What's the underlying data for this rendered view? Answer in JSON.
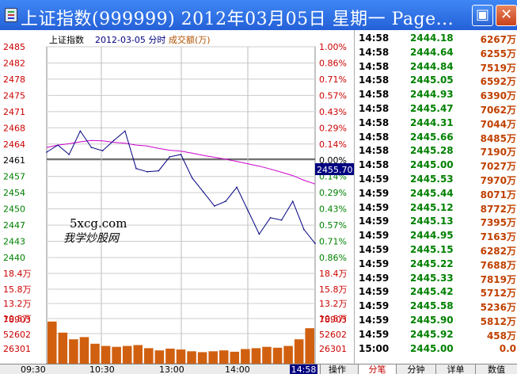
{
  "window": {
    "title": "上证指数(999999) 2012年03月05日 星期一 Page...",
    "maximize_glyph": "▣",
    "close_glyph": "✕"
  },
  "header": {
    "index_name": "上证指数",
    "date_label": "2012-03-05 分时",
    "volume_label": "成交额(万)"
  },
  "colors": {
    "up": "#cc0000",
    "down": "#008000",
    "price_line": "#000080",
    "avg_line": "#cc00cc",
    "volume_bar": "#d06010",
    "marker_bg": "#000080"
  },
  "price_axis": {
    "left": [
      "2485",
      "2482",
      "2478",
      "2475",
      "2471",
      "2468",
      "2464",
      "2461",
      "2457",
      "2454",
      "2450",
      "2447",
      "2443",
      "2440"
    ],
    "right": [
      "1.00%",
      "0.86%",
      "0.71%",
      "0.57%",
      "0.43%",
      "0.29%",
      "0.14%",
      "0.00%",
      "0.14%",
      "0.29%",
      "0.43%",
      "0.57%",
      "0.71%",
      "0.86%"
    ]
  },
  "current_price_marker": "2455.70",
  "turnover_axis": {
    "labels": [
      "18.4万",
      "15.8万",
      "13.2万",
      "10.5万"
    ]
  },
  "volume_axis": {
    "labels": [
      "78903",
      "52602",
      "26301"
    ]
  },
  "watermark": {
    "domain": "5xcg.com",
    "tagline": "我学炒股网"
  },
  "time_axis": {
    "labels": [
      "09:30",
      "10:30",
      "13:00",
      "14:00"
    ],
    "current": "14:58"
  },
  "chart_data": {
    "type": "line",
    "x": [
      "09:30",
      "09:40",
      "09:50",
      "10:00",
      "10:10",
      "10:20",
      "10:30",
      "10:40",
      "10:50",
      "11:00",
      "11:10",
      "11:20",
      "11:30",
      "13:10",
      "13:20",
      "13:30",
      "13:40",
      "13:50",
      "14:00",
      "14:10",
      "14:20",
      "14:30",
      "14:40",
      "14:50",
      "14:58"
    ],
    "series": [
      {
        "values": [
          2462.5,
          2464.0,
          2462.0,
          2467.0,
          2463.5,
          2462.8,
          2465.0,
          2467.0,
          2459.0,
          2458.3,
          2458.5,
          2461.5,
          2462.0,
          2457.0,
          2454.0,
          2451.0,
          2452.0,
          2455.0,
          2450.0,
          2445.0,
          2448.5,
          2448.0,
          2452.0,
          2446.0,
          2443.0
        ]
      },
      {
        "values": [
          2463.5,
          2464.0,
          2464.3,
          2464.7,
          2465.0,
          2464.9,
          2464.6,
          2464.4,
          2464.0,
          2463.8,
          2463.3,
          2462.9,
          2462.7,
          2462.3,
          2461.8,
          2461.4,
          2461.0,
          2460.5,
          2460.0,
          2459.5,
          2458.9,
          2458.2,
          2457.5,
          2456.5,
          2455.7
        ]
      }
    ],
    "ylim": [
      2440,
      2485
    ],
    "baseline": 2461,
    "volumes": [
      95,
      70,
      55,
      60,
      45,
      40,
      38,
      40,
      42,
      35,
      30,
      34,
      32,
      28,
      26,
      28,
      30,
      27,
      33,
      35,
      38,
      36,
      40,
      55,
      80
    ]
  },
  "tape": {
    "rows": [
      {
        "time": "14:58",
        "price": "2444.18",
        "vol": "6267万"
      },
      {
        "time": "14:58",
        "price": "2444.64",
        "vol": "6255万"
      },
      {
        "time": "14:58",
        "price": "2444.84",
        "vol": "7519万"
      },
      {
        "time": "14:58",
        "price": "2445.05",
        "vol": "6592万"
      },
      {
        "time": "14:58",
        "price": "2444.93",
        "vol": "6390万"
      },
      {
        "time": "14:58",
        "price": "2445.47",
        "vol": "7062万"
      },
      {
        "time": "14:58",
        "price": "2444.31",
        "vol": "7044万"
      },
      {
        "time": "14:58",
        "price": "2445.66",
        "vol": "8485万"
      },
      {
        "time": "14:58",
        "price": "2445.28",
        "vol": "7190万"
      },
      {
        "time": "14:58",
        "price": "2445.00",
        "vol": "7027万"
      },
      {
        "time": "14:59",
        "price": "2445.53",
        "vol": "7970万"
      },
      {
        "time": "14:59",
        "price": "2445.44",
        "vol": "8071万"
      },
      {
        "time": "14:59",
        "price": "2445.12",
        "vol": "8772万"
      },
      {
        "time": "14:59",
        "price": "2445.13",
        "vol": "7395万"
      },
      {
        "time": "14:59",
        "price": "2444.95",
        "vol": "7163万"
      },
      {
        "time": "14:59",
        "price": "2445.15",
        "vol": "6282万"
      },
      {
        "time": "14:59",
        "price": "2445.22",
        "vol": "7688万"
      },
      {
        "time": "14:59",
        "price": "2445.33",
        "vol": "7819万"
      },
      {
        "time": "14:59",
        "price": "2445.42",
        "vol": "5712万"
      },
      {
        "time": "14:59",
        "price": "2445.58",
        "vol": "5236万"
      },
      {
        "time": "14:59",
        "price": "2445.90",
        "vol": "5812万"
      },
      {
        "time": "14:59",
        "price": "2445.92",
        "vol": "458万"
      },
      {
        "time": "15:00",
        "price": "2445.00",
        "vol": "0.0"
      }
    ]
  },
  "status": {
    "op_label": "操作",
    "tabs": [
      "分笔",
      "分钟",
      "详单",
      "数值"
    ]
  }
}
